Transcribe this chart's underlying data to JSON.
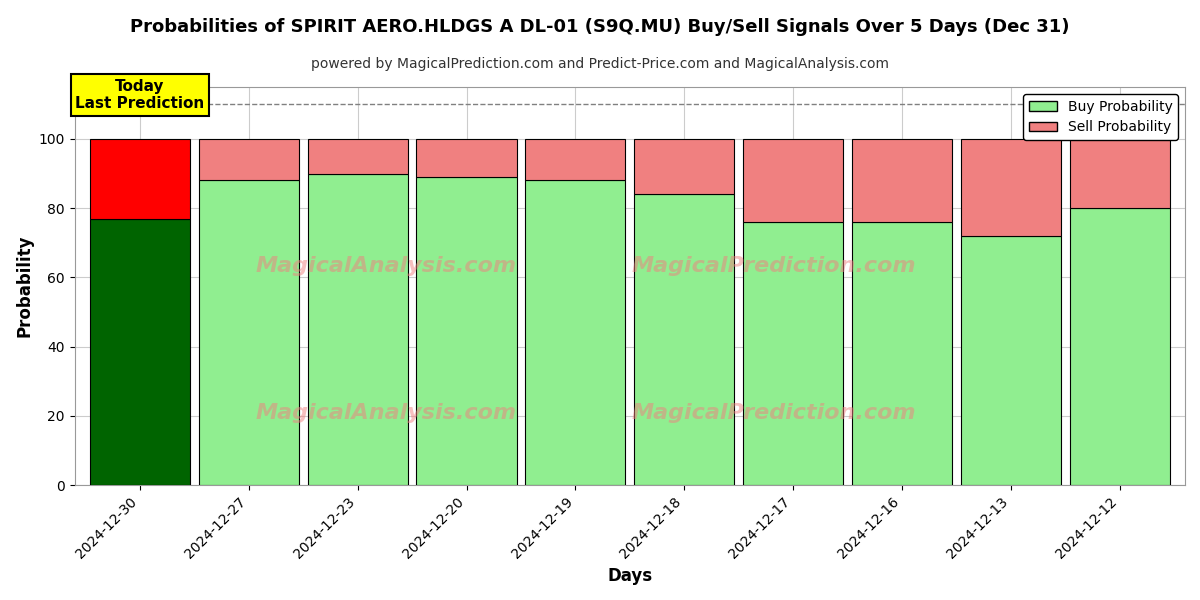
{
  "title": "Probabilities of SPIRIT AERO.HLDGS A DL-01 (S9Q.MU) Buy/Sell Signals Over 5 Days (Dec 31)",
  "subtitle": "powered by MagicalPrediction.com and Predict-Price.com and MagicalAnalysis.com",
  "xlabel": "Days",
  "ylabel": "Probability",
  "dates": [
    "2024-12-30",
    "2024-12-27",
    "2024-12-23",
    "2024-12-20",
    "2024-12-19",
    "2024-12-18",
    "2024-12-17",
    "2024-12-16",
    "2024-12-13",
    "2024-12-12"
  ],
  "buy_values": [
    77,
    88,
    90,
    89,
    88,
    84,
    76,
    76,
    72,
    80
  ],
  "sell_values": [
    23,
    12,
    10,
    11,
    12,
    16,
    24,
    24,
    28,
    20
  ],
  "today_bar_buy_color": "#006400",
  "today_bar_sell_color": "#FF0000",
  "buy_color": "#90EE90",
  "sell_color": "#F08080",
  "today_label_bg": "#FFFF00",
  "today_label_text": "Today\nLast Prediction",
  "dashed_line_y": 110,
  "ylim": [
    0,
    115
  ],
  "yticks": [
    0,
    20,
    40,
    60,
    80,
    100
  ],
  "legend_buy": "Buy Probability",
  "legend_sell": "Sell Probability",
  "watermark_left": "MagicalAnalysis.com",
  "watermark_right": "MagicalPrediction.com",
  "background_color": "#FFFFFF",
  "grid_color": "#CCCCCC",
  "bar_edge_color": "#000000",
  "bar_width": 0.92
}
